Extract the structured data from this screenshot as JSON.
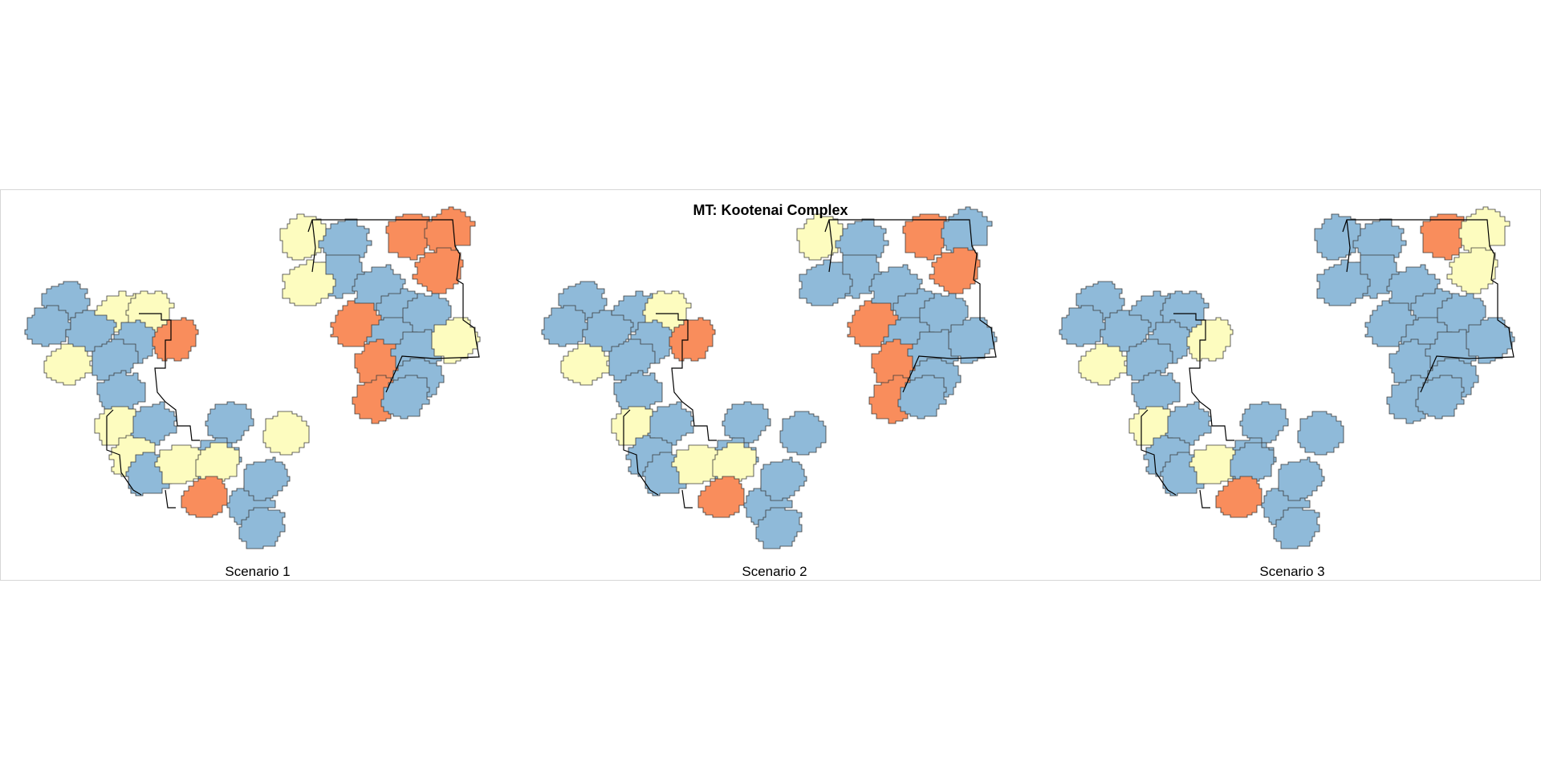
{
  "title": "MT: Kootenai Complex",
  "colors": {
    "blue": "#8fbad9",
    "yellow": "#fdfcbf",
    "orange": "#f98d5c",
    "outline": "#000000"
  },
  "panels": [
    {
      "label": "Scenario 1",
      "cells": {
        "w1": "blue",
        "w2": "blue",
        "w3": "yellow",
        "w4": "yellow",
        "w5": "blue",
        "w6": "blue",
        "w7": "orange",
        "w8": "yellow",
        "w9": "blue",
        "w10": "blue",
        "w11": "yellow",
        "w12": "blue",
        "w13": "blue",
        "w14": "yellow",
        "w15": "yellow",
        "w16": "blue",
        "w17": "blue",
        "w18": "yellow",
        "w19": "yellow",
        "w20": "orange",
        "w21": "blue",
        "w22": "blue",
        "w23": "blue",
        "e1": "yellow",
        "e2": "blue",
        "e3": "blue",
        "e4": "orange",
        "e5": "orange",
        "e6": "yellow",
        "e7": "blue",
        "e8": "blue",
        "e9": "orange",
        "e10": "orange",
        "e11": "blue",
        "e12": "blue",
        "e13": "orange",
        "e14": "blue",
        "e15": "blue",
        "e16": "yellow",
        "e17": "orange",
        "e18": "blue"
      }
    },
    {
      "label": "Scenario 2",
      "cells": {
        "w1": "blue",
        "w2": "blue",
        "w3": "blue",
        "w4": "yellow",
        "w5": "blue",
        "w6": "blue",
        "w7": "orange",
        "w8": "yellow",
        "w9": "blue",
        "w10": "blue",
        "w11": "yellow",
        "w12": "blue",
        "w13": "blue",
        "w14": "blue",
        "w15": "blue",
        "w16": "blue",
        "w17": "blue",
        "w18": "yellow",
        "w19": "yellow",
        "w20": "orange",
        "w21": "blue",
        "w22": "blue",
        "w23": "blue",
        "e1": "yellow",
        "e2": "blue",
        "e3": "blue",
        "e4": "orange",
        "e5": "blue",
        "e6": "blue",
        "e7": "blue",
        "e8": "blue",
        "e9": "orange",
        "e10": "orange",
        "e11": "blue",
        "e12": "blue",
        "e13": "orange",
        "e14": "blue",
        "e15": "blue",
        "e16": "blue",
        "e17": "orange",
        "e18": "blue"
      }
    },
    {
      "label": "Scenario 3",
      "cells": {
        "w1": "blue",
        "w2": "blue",
        "w3": "blue",
        "w4": "blue",
        "w5": "blue",
        "w6": "blue",
        "w7": "yellow",
        "w8": "yellow",
        "w9": "blue",
        "w10": "blue",
        "w11": "yellow",
        "w12": "blue",
        "w13": "blue",
        "w14": "blue",
        "w15": "blue",
        "w16": "blue",
        "w17": "blue",
        "w18": "yellow",
        "w19": "blue",
        "w20": "orange",
        "w21": "blue",
        "w22": "blue",
        "w23": "blue",
        "e1": "blue",
        "e2": "blue",
        "e3": "blue",
        "e4": "orange",
        "e5": "yellow",
        "e6": "blue",
        "e7": "blue",
        "e8": "blue",
        "e9": "yellow",
        "e10": "blue",
        "e11": "blue",
        "e12": "blue",
        "e13": "blue",
        "e14": "blue",
        "e15": "blue",
        "e16": "blue",
        "e17": "blue",
        "e18": "blue"
      }
    }
  ]
}
